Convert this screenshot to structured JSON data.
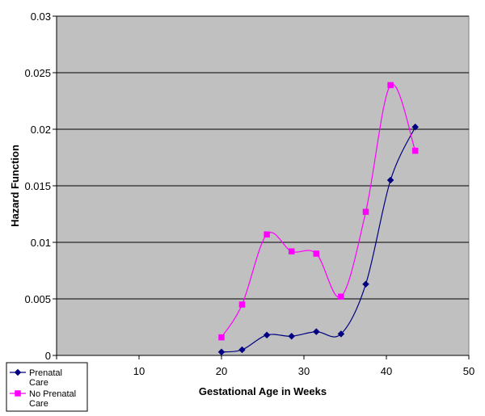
{
  "chart_data": {
    "type": "line",
    "title": "",
    "xlabel": "Gestational Age in Weeks",
    "ylabel": "Hazard Function",
    "xlim": [
      0,
      50
    ],
    "ylim": [
      0,
      0.03
    ],
    "x_ticks": [
      "10",
      "20",
      "30",
      "40",
      "50"
    ],
    "y_ticks": [
      "0",
      "0.005",
      "0.01",
      "0.015",
      "0.02",
      "0.025",
      "0.03"
    ],
    "grid": "horizontal",
    "plot_background": "#c0c0c0",
    "legend_position": "bottom-left",
    "series": [
      {
        "name": "Prenatal Care",
        "name_lines": [
          "Prenatal",
          "Care"
        ],
        "color": "#000080",
        "marker": "diamond",
        "x": [
          20,
          22.5,
          25.5,
          28.5,
          31.5,
          34.5,
          37.5,
          40.5,
          43.5
        ],
        "y": [
          0.0003,
          0.0005,
          0.0018,
          0.0017,
          0.0021,
          0.0019,
          0.0063,
          0.0155,
          0.0202
        ]
      },
      {
        "name": "No Prenatal Care",
        "name_lines": [
          "No Prenatal",
          "Care"
        ],
        "color": "#ff00ff",
        "marker": "square",
        "x": [
          20,
          22.5,
          25.5,
          28.5,
          31.5,
          34.5,
          37.5,
          40.5,
          43.5
        ],
        "y": [
          0.0016,
          0.0045,
          0.0107,
          0.0092,
          0.009,
          0.0052,
          0.0127,
          0.0239,
          0.0181
        ]
      }
    ]
  }
}
